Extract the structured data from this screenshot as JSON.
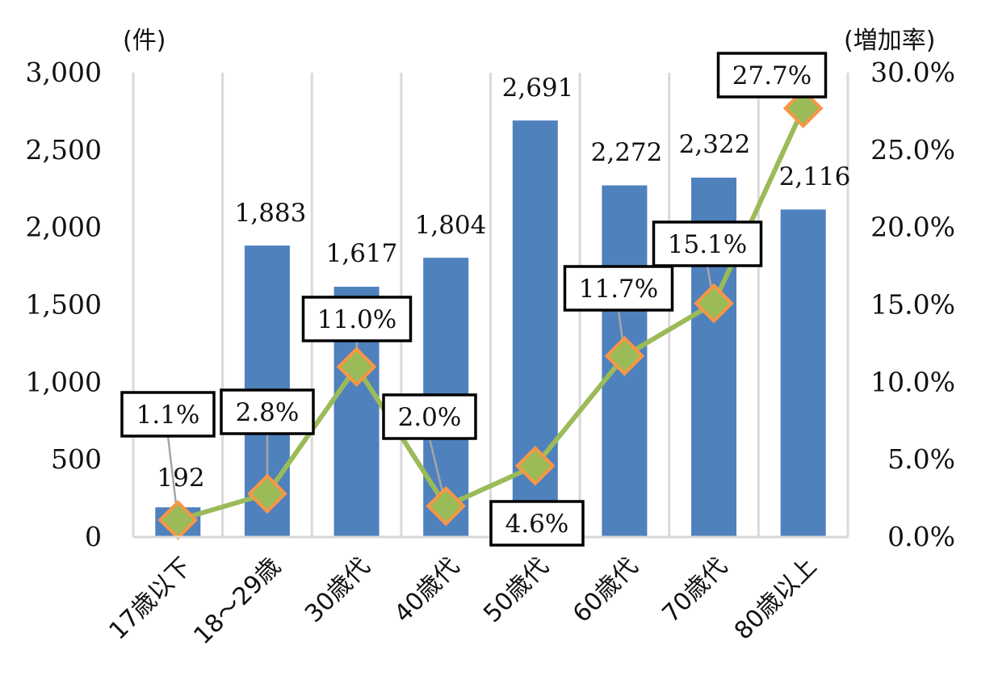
{
  "chart_data": {
    "type": "bar",
    "categories": [
      "17歳以下",
      "18～29歳",
      "30歳代",
      "40歳代",
      "50歳代",
      "60歳代",
      "70歳代",
      "80歳以上"
    ],
    "series": [
      {
        "type": "bar",
        "axis": "left",
        "color": "#4f81bd",
        "values": [
          192,
          1883,
          1617,
          1804,
          2691,
          2272,
          2322,
          2116
        ],
        "labels": [
          "192",
          "1,883",
          "1,617",
          "1,804",
          "2,691",
          "2,272",
          "2,322",
          "2,116"
        ]
      },
      {
        "type": "line",
        "axis": "right",
        "color": "#9bbb59",
        "marker_color": "#f79646",
        "values": [
          1.1,
          2.8,
          11.0,
          2.0,
          4.6,
          11.7,
          15.1,
          27.7
        ],
        "labels": [
          "1.1%",
          "2.8%",
          "11.0%",
          "2.0%",
          "4.6%",
          "11.7%",
          "15.1%",
          "27.7%"
        ]
      }
    ],
    "y_left": {
      "unit": "(件)",
      "ylim": [
        0,
        3000
      ],
      "ticks": [
        0,
        500,
        1000,
        1500,
        2000,
        2500,
        3000
      ],
      "tick_labels": [
        "0",
        "500",
        "1,000",
        "1,500",
        "2,000",
        "2,500",
        "3,000"
      ]
    },
    "y_right": {
      "unit": "(増加率)",
      "ylim": [
        0,
        30
      ],
      "ticks": [
        0,
        5,
        10,
        15,
        20,
        25,
        30
      ],
      "tick_labels": [
        "0.0%",
        "5.0%",
        "10.0%",
        "15.0%",
        "20.0%",
        "25.0%",
        "30.0%"
      ]
    },
    "grid": "vertical",
    "legend": "none"
  }
}
